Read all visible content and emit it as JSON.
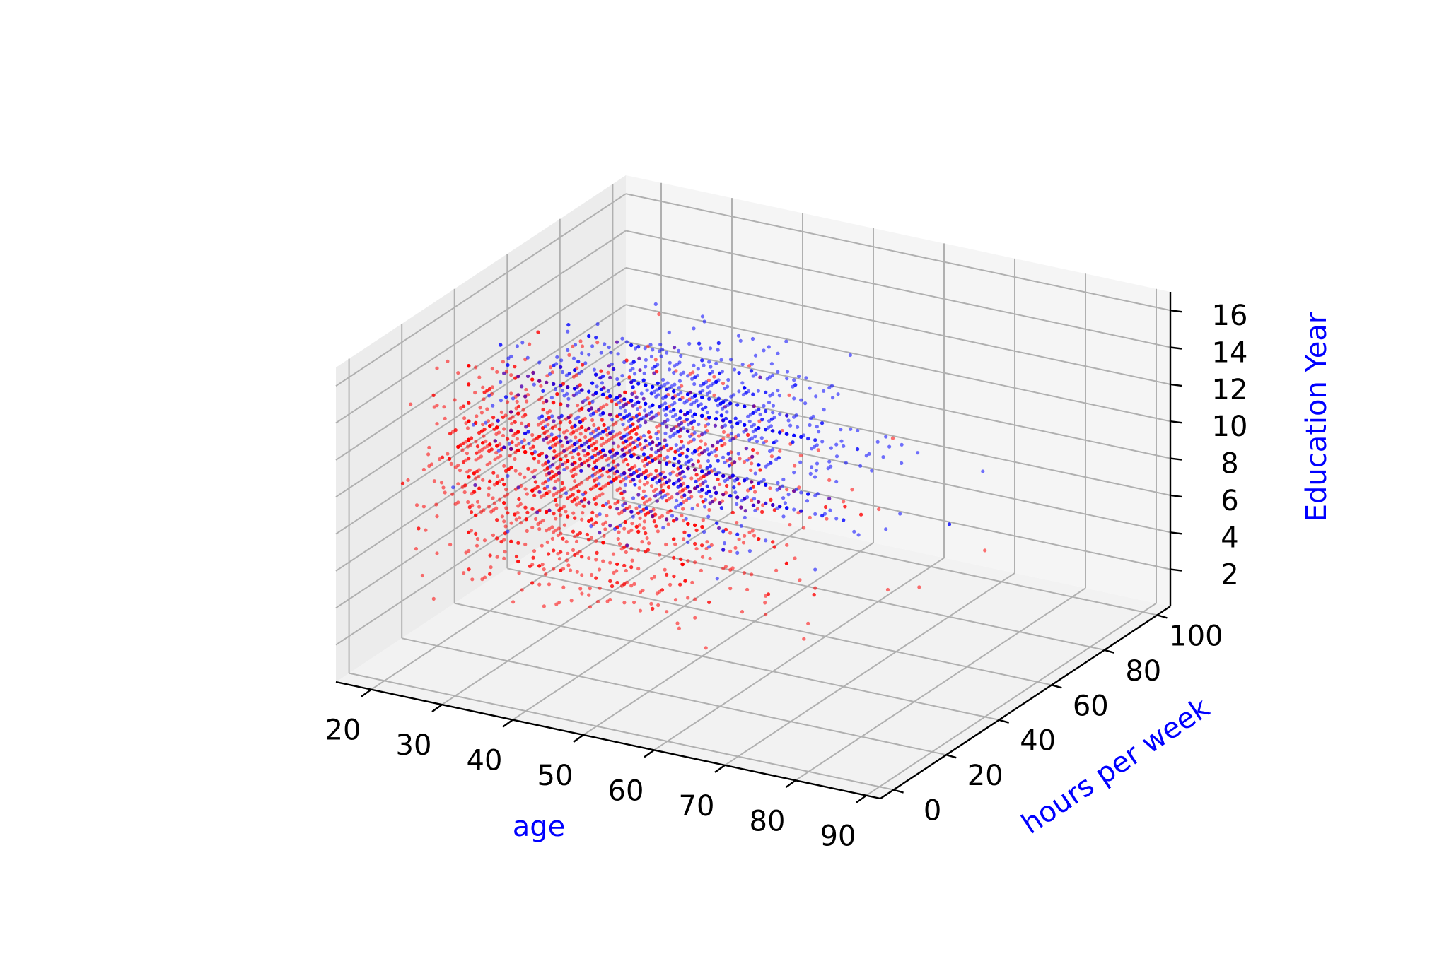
{
  "chart_data": {
    "type": "scatter",
    "projection": "3d",
    "title": "",
    "xlabel": "age",
    "ylabel": "hours per week",
    "zlabel": "Education Year",
    "label_color": "#0000ff",
    "xlim": [
      15,
      92
    ],
    "ylim": [
      -5,
      105
    ],
    "zlim": [
      0,
      17
    ],
    "x_ticks": [
      20,
      30,
      40,
      50,
      60,
      70,
      80,
      90
    ],
    "y_ticks": [
      0,
      20,
      40,
      60,
      80,
      100
    ],
    "z_ticks": [
      2,
      4,
      6,
      8,
      10,
      12,
      14,
      16
    ],
    "grid": true,
    "pane_color": "#f2f2f2",
    "grid_color": "#b0b0b0",
    "series": [
      {
        "color": "#ff0000",
        "description": "dense point cloud, mostly younger ages and lower education years",
        "age_range": [
          17,
          90
        ],
        "hours_range": [
          1,
          99
        ],
        "education_range": [
          1,
          16
        ],
        "sample_points": [
          [
            20,
            40,
            9
          ],
          [
            22,
            20,
            10
          ],
          [
            25,
            40,
            9
          ],
          [
            28,
            45,
            10
          ],
          [
            30,
            40,
            9
          ],
          [
            33,
            38,
            7
          ],
          [
            35,
            50,
            9
          ],
          [
            38,
            40,
            10
          ],
          [
            40,
            40,
            9
          ],
          [
            42,
            35,
            5
          ],
          [
            45,
            45,
            9
          ],
          [
            48,
            40,
            7
          ],
          [
            50,
            30,
            4
          ],
          [
            55,
            40,
            9
          ],
          [
            58,
            20,
            3
          ],
          [
            60,
            40,
            9
          ],
          [
            65,
            15,
            6
          ],
          [
            70,
            25,
            4
          ],
          [
            75,
            10,
            9
          ],
          [
            80,
            30,
            7
          ],
          [
            90,
            40,
            9
          ],
          [
            18,
            25,
            7
          ],
          [
            19,
            15,
            8
          ],
          [
            24,
            60,
            9
          ],
          [
            36,
            60,
            13
          ]
        ]
      },
      {
        "color": "#0000ff",
        "description": "point cloud concentrated at middle ages and higher education years",
        "age_range": [
          22,
          85
        ],
        "hours_range": [
          5,
          99
        ],
        "education_range": [
          6,
          16
        ],
        "sample_points": [
          [
            30,
            40,
            13
          ],
          [
            35,
            45,
            14
          ],
          [
            38,
            50,
            13
          ],
          [
            40,
            40,
            10
          ],
          [
            42,
            50,
            13
          ],
          [
            45,
            45,
            14
          ],
          [
            48,
            55,
            13
          ],
          [
            50,
            40,
            13
          ],
          [
            52,
            60,
            15
          ],
          [
            55,
            50,
            16
          ],
          [
            58,
            45,
            13
          ],
          [
            60,
            40,
            14
          ],
          [
            62,
            50,
            13
          ],
          [
            65,
            40,
            10
          ],
          [
            70,
            30,
            13
          ],
          [
            36,
            60,
            16
          ],
          [
            44,
            70,
            14
          ],
          [
            28,
            40,
            13
          ],
          [
            33,
            50,
            10
          ],
          [
            47,
            80,
            13
          ]
        ]
      }
    ]
  }
}
